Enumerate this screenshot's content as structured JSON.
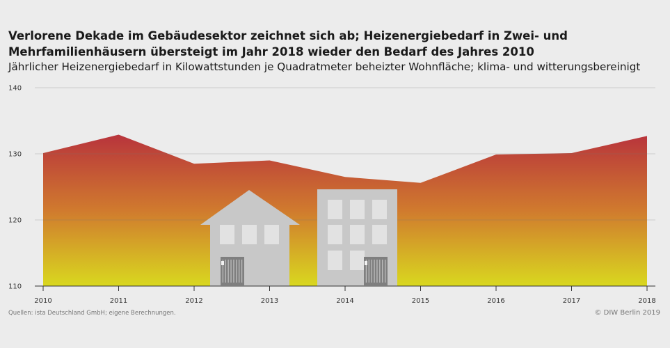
{
  "title": "Verlorene Dekade im Gebäudesektor zeichnet sich ab; Heizenergiebedarf in Zwei- und Mehrfamilienhäusern übersteigt im Jahr 2018 wieder den Bedarf des Jahres 2010",
  "subtitle": "Jährlicher Heizenergiebedarf in Kilowattstunden je Quadratmeter beheizter Wohnfläche; klima- und witterungsbereinigt",
  "source": "Quellen: ista Deutschland GmbH; eigene Berechnungen.",
  "copyright": "© DIW Berlin 2019",
  "colors": {
    "area_top": "#b8343c",
    "area_mid": "#d07a2e",
    "area_bottom": "#d9d81f",
    "building": "#c8c8c8",
    "window": "#e2e2e2",
    "radiator": "#7f7f7f",
    "gridline": "#777777"
  },
  "chart_data": {
    "type": "area",
    "x": [
      "2010",
      "2011",
      "2012",
      "2013",
      "2014",
      "2015",
      "2016",
      "2017",
      "2018"
    ],
    "values": [
      130.1,
      132.9,
      128.5,
      129.0,
      126.5,
      125.6,
      129.9,
      130.1,
      132.7
    ],
    "yticks": [
      "110",
      "120",
      "130",
      "140"
    ],
    "ylim": [
      110,
      140
    ],
    "grid": true,
    "xlabel": "",
    "ylabel": ""
  }
}
